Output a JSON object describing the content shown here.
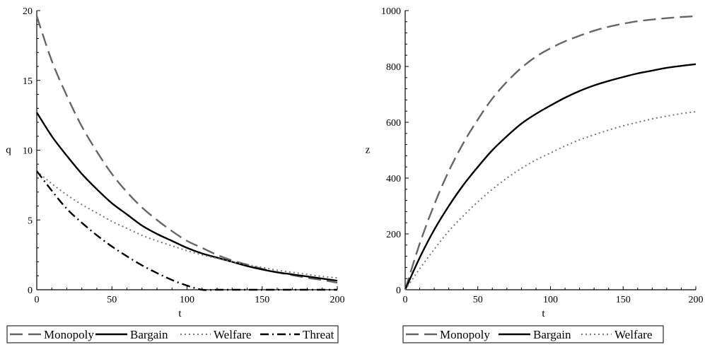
{
  "chart_data": [
    {
      "type": "line",
      "xlabel": "t",
      "ylabel": "q",
      "xlim": [
        0,
        200
      ],
      "ylim": [
        0,
        20
      ],
      "xticks": [
        0,
        50,
        100,
        150,
        200
      ],
      "yticks": [
        0,
        5,
        10,
        15,
        20
      ],
      "grid": false,
      "legend_position": "bottom",
      "series": [
        {
          "name": "Monopoly",
          "style": "dashed",
          "color": "#666666",
          "x": [
            0,
            10,
            20,
            30,
            40,
            50,
            60,
            70,
            80,
            90,
            100,
            110,
            120,
            130,
            140,
            150,
            160,
            170,
            180,
            190,
            200
          ],
          "y": [
            19.6,
            16.4,
            13.9,
            11.7,
            9.9,
            8.3,
            7.0,
            5.9,
            5.0,
            4.2,
            3.5,
            3.0,
            2.5,
            2.1,
            1.8,
            1.5,
            1.25,
            1.05,
            0.85,
            0.7,
            0.5
          ]
        },
        {
          "name": "Bargain",
          "style": "solid",
          "color": "#000000",
          "x": [
            0,
            10,
            20,
            30,
            40,
            50,
            60,
            70,
            80,
            90,
            100,
            110,
            120,
            130,
            140,
            150,
            160,
            170,
            180,
            190,
            200
          ],
          "y": [
            12.7,
            11.0,
            9.6,
            8.3,
            7.2,
            6.2,
            5.4,
            4.6,
            4.0,
            3.5,
            3.0,
            2.6,
            2.3,
            2.0,
            1.7,
            1.45,
            1.25,
            1.1,
            0.95,
            0.8,
            0.65
          ]
        },
        {
          "name": "Welfare",
          "style": "dotted",
          "color": "#777777",
          "x": [
            0,
            10,
            20,
            30,
            40,
            50,
            60,
            70,
            80,
            90,
            100,
            110,
            120,
            130,
            140,
            150,
            160,
            170,
            180,
            190,
            200
          ],
          "y": [
            8.5,
            7.6,
            6.8,
            6.1,
            5.5,
            4.9,
            4.4,
            3.9,
            3.5,
            3.15,
            2.8,
            2.5,
            2.25,
            2.0,
            1.8,
            1.6,
            1.4,
            1.25,
            1.1,
            0.95,
            0.85
          ]
        },
        {
          "name": "Threat",
          "style": "dashdot",
          "color": "#000000",
          "x": [
            0,
            10,
            20,
            30,
            40,
            50,
            60,
            70,
            80,
            90,
            100,
            110,
            120,
            130,
            140,
            150,
            160,
            170,
            180,
            190,
            200
          ],
          "y": [
            8.5,
            7.1,
            5.8,
            4.8,
            3.9,
            3.1,
            2.4,
            1.75,
            1.2,
            0.7,
            0.3,
            0.0,
            0,
            0,
            0,
            0,
            0,
            0,
            0,
            0,
            0
          ]
        }
      ]
    },
    {
      "type": "line",
      "xlabel": "t",
      "ylabel": "z",
      "xlim": [
        0,
        200
      ],
      "ylim": [
        0,
        1000
      ],
      "xticks": [
        0,
        50,
        100,
        150,
        200
      ],
      "yticks": [
        0,
        200,
        400,
        600,
        800,
        1000
      ],
      "grid": false,
      "legend_position": "bottom",
      "series": [
        {
          "name": "Monopoly",
          "style": "dashed",
          "color": "#666666",
          "x": [
            0,
            10,
            20,
            30,
            40,
            50,
            60,
            70,
            80,
            90,
            100,
            110,
            120,
            130,
            140,
            150,
            160,
            170,
            180,
            190,
            200
          ],
          "y": [
            0,
            165,
            305,
            425,
            525,
            610,
            685,
            745,
            795,
            835,
            865,
            890,
            910,
            928,
            942,
            953,
            962,
            968,
            973,
            977,
            980
          ]
        },
        {
          "name": "Bargain",
          "style": "solid",
          "color": "#000000",
          "x": [
            0,
            10,
            20,
            30,
            40,
            50,
            60,
            70,
            80,
            90,
            100,
            110,
            120,
            130,
            140,
            150,
            160,
            170,
            180,
            190,
            200
          ],
          "y": [
            0,
            115,
            215,
            300,
            375,
            440,
            500,
            550,
            595,
            630,
            660,
            688,
            712,
            732,
            748,
            762,
            775,
            785,
            795,
            802,
            808
          ]
        },
        {
          "name": "Welfare",
          "style": "dotted",
          "color": "#777777",
          "x": [
            0,
            10,
            20,
            30,
            40,
            50,
            60,
            70,
            80,
            90,
            100,
            110,
            120,
            130,
            140,
            150,
            160,
            170,
            180,
            190,
            200
          ],
          "y": [
            0,
            75,
            145,
            210,
            265,
            315,
            360,
            400,
            435,
            465,
            490,
            515,
            537,
            555,
            572,
            587,
            600,
            612,
            622,
            631,
            638
          ]
        }
      ]
    }
  ]
}
